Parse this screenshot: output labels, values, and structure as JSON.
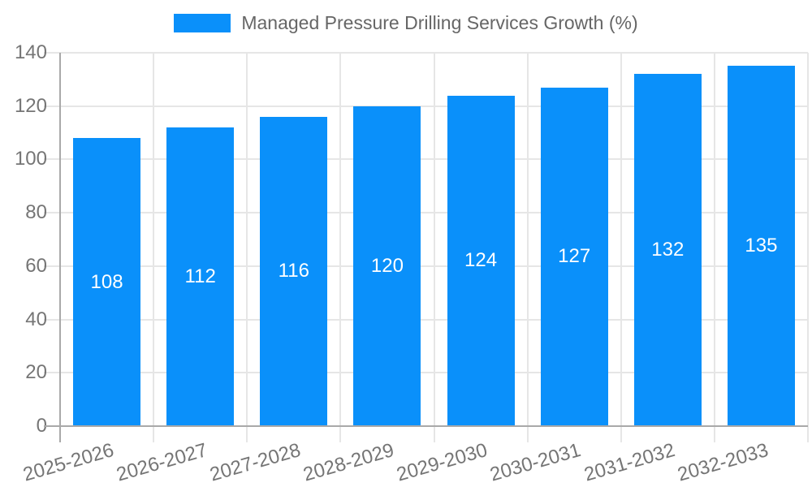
{
  "chart_data": {
    "type": "bar",
    "title": "Managed Pressure Drilling Services Growth (%)",
    "series": [
      {
        "name": "Managed Pressure Drilling Services Growth (%)",
        "values": [
          108,
          112,
          116,
          120,
          124,
          127,
          132,
          135
        ]
      }
    ],
    "categories": [
      "2025-2026",
      "2026-2027",
      "2027-2028",
      "2028-2029",
      "2029-2030",
      "2030-2031",
      "2031-2032",
      "2032-2033"
    ],
    "value_labels": [
      "108",
      "112",
      "116",
      "120",
      "124",
      "127",
      "132",
      "135"
    ],
    "xlabel": "",
    "ylabel": "",
    "ylim": [
      0,
      140
    ],
    "yticks": [
      0,
      20,
      40,
      60,
      80,
      100,
      120,
      140
    ],
    "grid": true,
    "legend_position": "top"
  },
  "legend": {
    "label": "Managed Pressure Drilling Services Growth (%)"
  },
  "colors": {
    "bar": "#0a90fa",
    "bar_value_text": "#ffffff",
    "gridline": "#e6e6e6",
    "axis_line": "#a9a9a9",
    "tick_label": "#757575",
    "legend_text": "#666666",
    "background": "#ffffff"
  }
}
